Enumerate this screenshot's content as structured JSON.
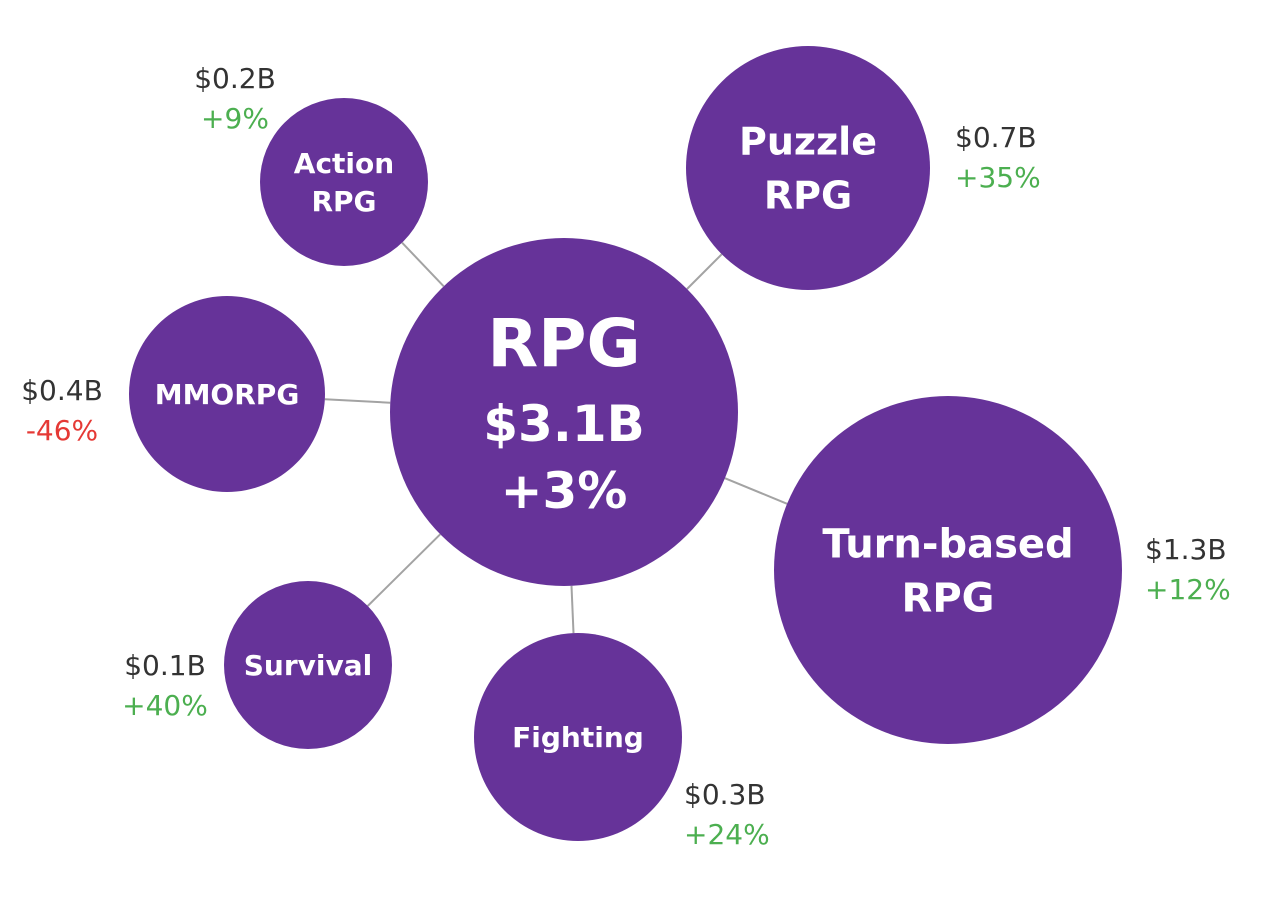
{
  "colors": {
    "bubble": "#663399",
    "connector": "#a3a3a3",
    "value_text": "#333333",
    "positive": "#4caf50",
    "negative": "#e53935"
  },
  "center": {
    "title": "RPG",
    "value": "$3.1B",
    "change": "+3%"
  },
  "genres": [
    {
      "key": "action-rpg",
      "lines": [
        "Action",
        "RPG"
      ],
      "value": "$0.2B",
      "change": "+9%",
      "trend": "positive"
    },
    {
      "key": "puzzle-rpg",
      "lines": [
        "Puzzle",
        "RPG"
      ],
      "value": "$0.7B",
      "change": "+35%",
      "trend": "positive"
    },
    {
      "key": "mmorpg",
      "lines": [
        "MMORPG"
      ],
      "value": "$0.4B",
      "change": "-46%",
      "trend": "negative"
    },
    {
      "key": "turn-based-rpg",
      "lines": [
        "Turn-based",
        "RPG"
      ],
      "value": "$1.3B",
      "change": "+12%",
      "trend": "positive"
    },
    {
      "key": "survival",
      "lines": [
        "Survival"
      ],
      "value": "$0.1B",
      "change": "+40%",
      "trend": "positive"
    },
    {
      "key": "fighting",
      "lines": [
        "Fighting"
      ],
      "value": "$0.3B",
      "change": "+24%",
      "trend": "positive"
    }
  ]
}
